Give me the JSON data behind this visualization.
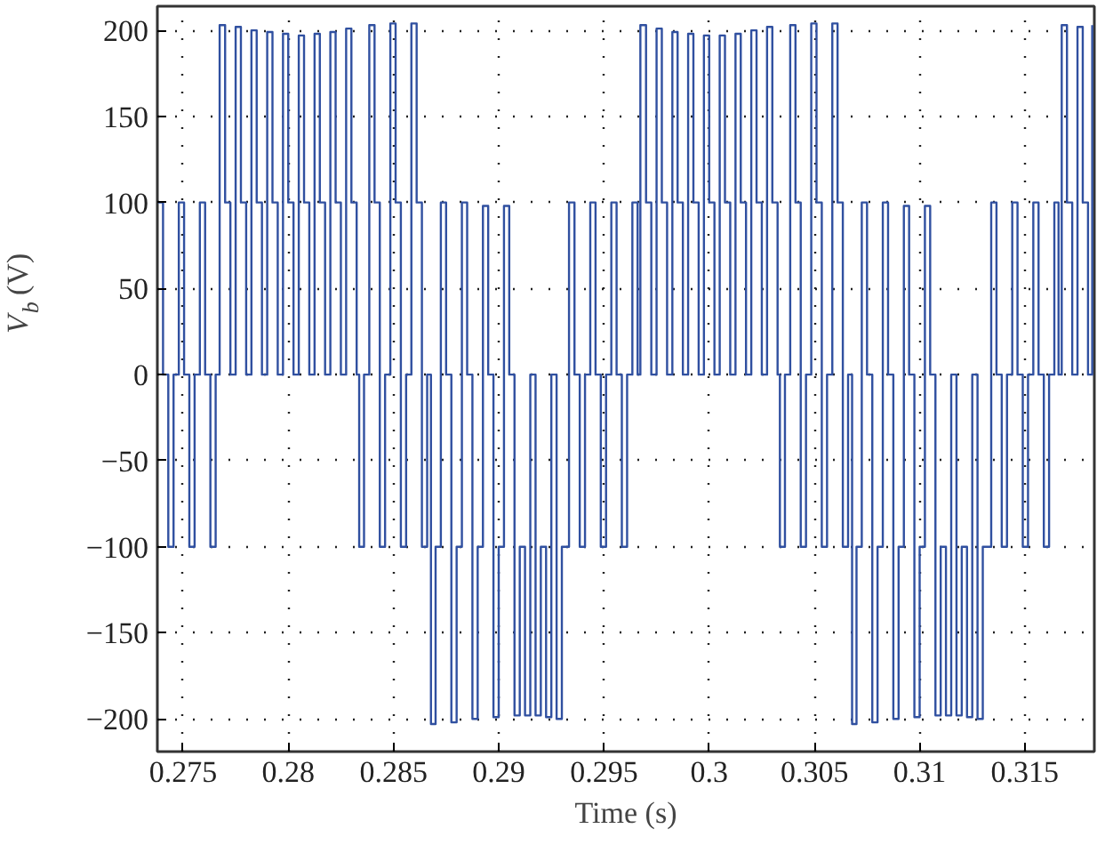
{
  "chart_data": {
    "type": "step",
    "xlabel": "Time (s)",
    "ylabel": "V$_{b}$ (V)",
    "xlim": [
      0.27378,
      0.3183
    ],
    "ylim": [
      -219,
      214
    ],
    "xticks": [
      0.275,
      0.28,
      0.285,
      0.29,
      0.295,
      0.3,
      0.305,
      0.31,
      0.315
    ],
    "yticks": [
      -200,
      -150,
      -100,
      -50,
      0,
      50,
      100,
      150,
      200
    ],
    "grid": true,
    "line_style": "solid",
    "marker": "none",
    "series": [
      {
        "color": "#3050a0",
        "x": [
          0.2738,
          0.27405,
          0.2743,
          0.27455,
          0.2748,
          0.27505,
          0.2753,
          0.27555,
          0.2758,
          0.27605,
          0.2763,
          0.27655,
          0.27674,
          0.277,
          0.27725,
          0.2775,
          0.27775,
          0.278,
          0.27825,
          0.2785,
          0.27875,
          0.279,
          0.27925,
          0.2795,
          0.27975,
          0.28,
          0.28025,
          0.2805,
          0.28075,
          0.281,
          0.28125,
          0.2815,
          0.28175,
          0.282,
          0.28225,
          0.2825,
          0.28275,
          0.283,
          0.28325,
          0.28337,
          0.2836,
          0.28385,
          0.2841,
          0.28435,
          0.2846,
          0.28485,
          0.2851,
          0.28535,
          0.2856,
          0.28585,
          0.2861,
          0.28635,
          0.2866,
          0.28678,
          0.287,
          0.28725,
          0.2875,
          0.28775,
          0.288,
          0.28825,
          0.2885,
          0.28875,
          0.289,
          0.28925,
          0.2895,
          0.28975,
          0.29,
          0.29025,
          0.2905,
          0.29075,
          0.291,
          0.29125,
          0.2915,
          0.29175,
          0.292,
          0.29225,
          0.2925,
          0.29275,
          0.293,
          0.29334,
          0.2936,
          0.29385,
          0.2941,
          0.29435,
          0.2946,
          0.29485,
          0.2951,
          0.29535,
          0.2956,
          0.29585,
          0.2961,
          0.29635,
          0.2966,
          0.29673,
          0.297,
          0.29725,
          0.2975,
          0.29775,
          0.298,
          0.29825,
          0.2985,
          0.29875,
          0.299,
          0.29925,
          0.2995,
          0.29975,
          0.3,
          0.30025,
          0.3005,
          0.30075,
          0.301,
          0.30125,
          0.3015,
          0.30175,
          0.302,
          0.30225,
          0.3025,
          0.30275,
          0.303,
          0.30325,
          0.30336,
          0.3036,
          0.30385,
          0.3041,
          0.30435,
          0.3046,
          0.30485,
          0.3051,
          0.30535,
          0.3056,
          0.30585,
          0.3061,
          0.30635,
          0.3066,
          0.30679,
          0.307,
          0.30725,
          0.3075,
          0.30775,
          0.308,
          0.30825,
          0.3085,
          0.30875,
          0.309,
          0.30925,
          0.3095,
          0.30975,
          0.31,
          0.31025,
          0.3105,
          0.31075,
          0.311,
          0.31125,
          0.3115,
          0.31175,
          0.312,
          0.31225,
          0.3125,
          0.31275,
          0.313,
          0.3134,
          0.31365,
          0.3139,
          0.31415,
          0.3144,
          0.31465,
          0.3149,
          0.31515,
          0.3154,
          0.31565,
          0.3159,
          0.31615,
          0.3164,
          0.3166,
          0.31675,
          0.317,
          0.31725,
          0.3175,
          0.31775,
          0.318,
          0.3182
        ],
        "values": [
          100,
          0,
          -100,
          0,
          100,
          0,
          -100,
          0,
          100,
          0,
          -100,
          0,
          203,
          100,
          0,
          202,
          100,
          0,
          200,
          100,
          0,
          199,
          100,
          0,
          198,
          100,
          0,
          197,
          100,
          0,
          198,
          100,
          0,
          199,
          100,
          0,
          201,
          100,
          0,
          -100,
          0,
          203,
          100,
          -100,
          0,
          204,
          100,
          -100,
          0,
          204,
          100,
          -100,
          0,
          -203,
          -100,
          100,
          0,
          -202,
          -100,
          100,
          0,
          -200,
          -100,
          98,
          0,
          -199,
          -100,
          98,
          0,
          -198,
          -100,
          -198,
          0,
          -198,
          -100,
          -199,
          0,
          -200,
          -100,
          100,
          0,
          -100,
          0,
          100,
          0,
          -100,
          0,
          100,
          0,
          -100,
          0,
          100,
          0,
          203,
          100,
          0,
          201,
          100,
          0,
          199,
          100,
          0,
          198,
          100,
          0,
          197,
          100,
          0,
          197,
          100,
          0,
          198,
          100,
          0,
          200,
          100,
          0,
          202,
          100,
          0,
          -100,
          0,
          203,
          100,
          -100,
          0,
          204,
          100,
          -100,
          0,
          204,
          100,
          -100,
          0,
          -203,
          -100,
          100,
          0,
          -202,
          -100,
          100,
          0,
          -200,
          -100,
          98,
          0,
          -199,
          -100,
          98,
          0,
          -198,
          -100,
          -198,
          0,
          -198,
          -100,
          -199,
          0,
          -200,
          -100,
          100,
          0,
          -100,
          0,
          100,
          0,
          -100,
          0,
          100,
          0,
          -100,
          0,
          100,
          0,
          203,
          100,
          0,
          202,
          100,
          0,
          203
        ]
      }
    ]
  }
}
